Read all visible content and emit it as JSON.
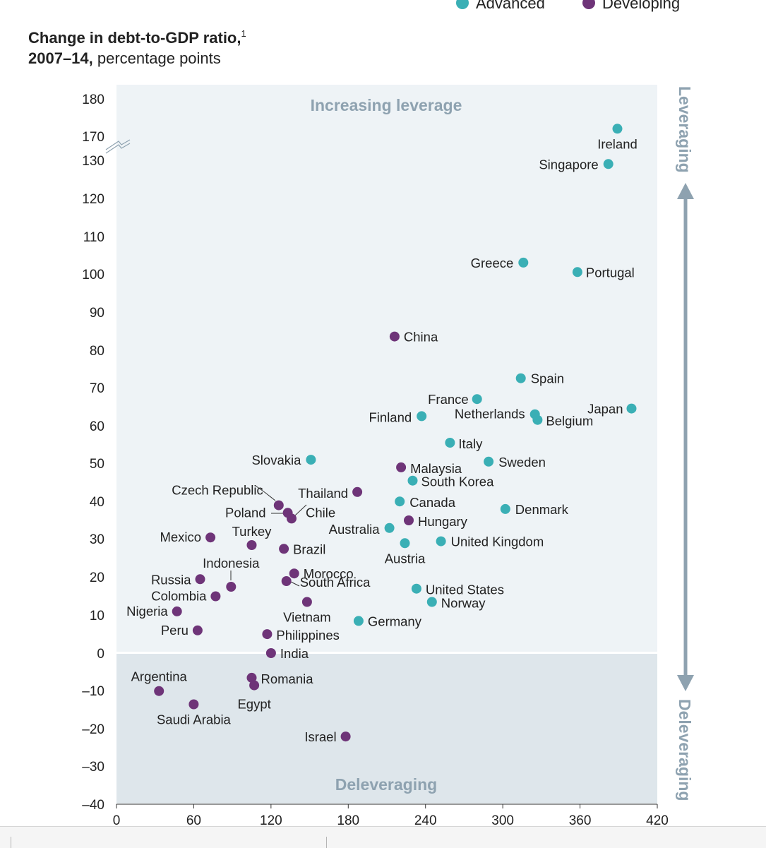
{
  "chart_data": {
    "type": "scatter",
    "title_bold": "Change in debt-to-GDP ratio,",
    "title_sup": "1",
    "subtitle_bold": "2007–14,",
    "subtitle_rest": " percentage points",
    "xlim": [
      0,
      420
    ],
    "x_ticks": [
      "0",
      "60",
      "120",
      "180",
      "240",
      "300",
      "360",
      "420"
    ],
    "y_ticks": [
      "180",
      "170",
      "130",
      "120",
      "110",
      "100",
      "90",
      "80",
      "70",
      "60",
      "50",
      "40",
      "30",
      "20",
      "10",
      "0",
      "–10",
      "–20",
      "–30",
      "–40"
    ],
    "y_axis_break": "between 130 and 170",
    "region_top": "Increasing leverage",
    "region_bottom": "Deleveraging",
    "side_top": "Leveraging",
    "side_bottom": "Deleveraging",
    "legend": [
      {
        "name": "Advanced",
        "color": "#3aafb5"
      },
      {
        "name": "Developing",
        "color": "#6e3478"
      }
    ],
    "series": [
      {
        "name": "Advanced",
        "color": "#3aafb5",
        "points": [
          {
            "label": "Ireland",
            "x": 389,
            "y": 172
          },
          {
            "label": "Singapore",
            "x": 382,
            "y": 129
          },
          {
            "label": "Greece",
            "x": 316,
            "y": 103
          },
          {
            "label": "Portugal",
            "x": 358,
            "y": 100.5
          },
          {
            "label": "Spain",
            "x": 314,
            "y": 72.5
          },
          {
            "label": "France",
            "x": 280,
            "y": 67
          },
          {
            "label": "Japan",
            "x": 400,
            "y": 64.5
          },
          {
            "label": "Netherlands",
            "x": 325,
            "y": 63
          },
          {
            "label": "Belgium",
            "x": 327,
            "y": 61.5
          },
          {
            "label": "Finland",
            "x": 237,
            "y": 62.5
          },
          {
            "label": "Italy",
            "x": 259,
            "y": 55.5
          },
          {
            "label": "Slovakia",
            "x": 151,
            "y": 51
          },
          {
            "label": "Sweden",
            "x": 289,
            "y": 50.5
          },
          {
            "label": "South Korea",
            "x": 230,
            "y": 45.5
          },
          {
            "label": "Canada",
            "x": 220,
            "y": 40
          },
          {
            "label": "Denmark",
            "x": 302,
            "y": 38
          },
          {
            "label": "Australia",
            "x": 212,
            "y": 33
          },
          {
            "label": "United Kingdom",
            "x": 252,
            "y": 29.5
          },
          {
            "label": "Austria",
            "x": 224,
            "y": 29
          },
          {
            "label": "United States",
            "x": 233,
            "y": 17
          },
          {
            "label": "Norway",
            "x": 245,
            "y": 13.5
          },
          {
            "label": "Germany",
            "x": 188,
            "y": 8.5
          }
        ]
      },
      {
        "name": "Developing",
        "color": "#6e3478",
        "points": [
          {
            "label": "China",
            "x": 216,
            "y": 83.5
          },
          {
            "label": "Malaysia",
            "x": 221,
            "y": 49
          },
          {
            "label": "Thailand",
            "x": 187,
            "y": 42.5
          },
          {
            "label": "Czech Republic",
            "x": 126,
            "y": 39
          },
          {
            "label": "Poland",
            "x": 133,
            "y": 37
          },
          {
            "label": "Chile",
            "x": 136,
            "y": 35.5
          },
          {
            "label": "Hungary",
            "x": 227,
            "y": 35
          },
          {
            "label": "Mexico",
            "x": 73,
            "y": 30.5
          },
          {
            "label": "Turkey",
            "x": 105,
            "y": 28.5
          },
          {
            "label": "Brazil",
            "x": 130,
            "y": 27.5
          },
          {
            "label": "Morocco",
            "x": 138,
            "y": 21
          },
          {
            "label": "Russia",
            "x": 65,
            "y": 19.5
          },
          {
            "label": "South Africa",
            "x": 132,
            "y": 19
          },
          {
            "label": "Indonesia",
            "x": 89,
            "y": 17.5
          },
          {
            "label": "Colombia",
            "x": 77,
            "y": 15
          },
          {
            "label": "Vietnam",
            "x": 148,
            "y": 13.5
          },
          {
            "label": "Nigeria",
            "x": 47,
            "y": 11
          },
          {
            "label": "Peru",
            "x": 63,
            "y": 6
          },
          {
            "label": "Philippines",
            "x": 117,
            "y": 5
          },
          {
            "label": "India",
            "x": 120,
            "y": 0
          },
          {
            "label": "Romania",
            "x": 105,
            "y": -6.5
          },
          {
            "label": "Egypt",
            "x": 107,
            "y": -8.5
          },
          {
            "label": "Argentina",
            "x": 33,
            "y": -10
          },
          {
            "label": "Saudi Arabia",
            "x": 60,
            "y": -13.5
          },
          {
            "label": "Israel",
            "x": 178,
            "y": -22
          }
        ]
      }
    ]
  }
}
